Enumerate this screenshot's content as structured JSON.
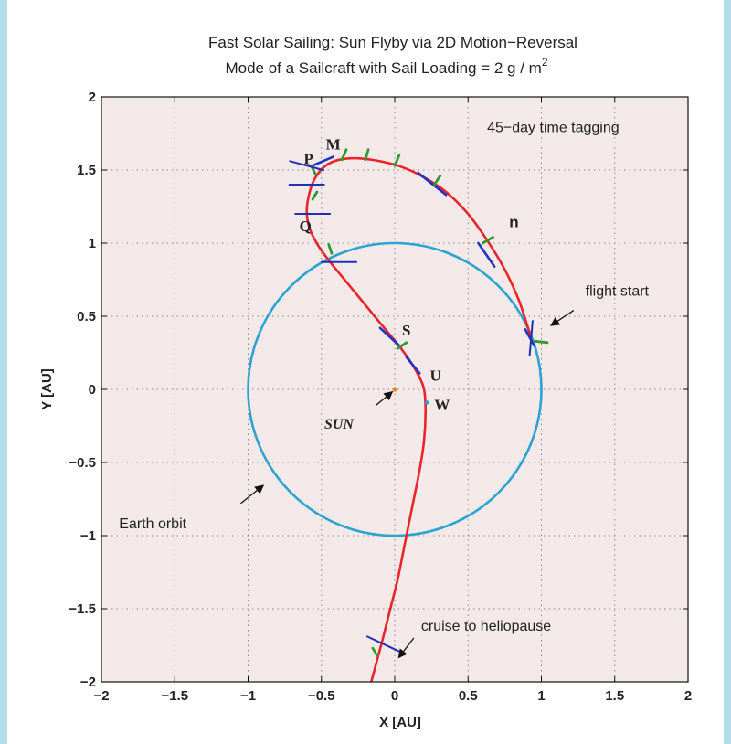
{
  "chart_data": {
    "type": "line",
    "title_line1": "Fast Solar Sailing: Sun Flyby via 2D Motion−Reversal",
    "title_line2": "Mode of a Sailcraft with Sail Loading = 2 g / m",
    "title_superscript": "2",
    "xlabel": "X  [AU]",
    "ylabel": "Y  [AU]",
    "xlim": [
      -2,
      2
    ],
    "ylim": [
      -2,
      2
    ],
    "grid": true,
    "xticks": [
      -2,
      -1.5,
      -1,
      -0.5,
      0,
      0.5,
      1,
      1.5,
      2
    ],
    "yticks": [
      -2,
      -1.5,
      -1,
      -0.5,
      0,
      0.5,
      1,
      1.5,
      2
    ],
    "xtick_labels": [
      "−2",
      "−1.5",
      "−1",
      "−0.5",
      "0",
      "0.5",
      "1",
      "1.5",
      "2"
    ],
    "ytick_labels": [
      "−2",
      "−1.5",
      "−1",
      "−0.5",
      "0",
      "0.5",
      "1",
      "1.5",
      "2"
    ],
    "colors": {
      "plot_background": "#f4e9e9",
      "grid": "#8a8a8a",
      "earth_orbit": "#2aa3cf",
      "trajectory": "#e8252b",
      "thrust_segment": "#2233c4",
      "sail_marker": "#1f2fb8",
      "tag_tick": "#2f9a2f",
      "sun": "#e08a1e",
      "point_w": "#2aa3cf"
    },
    "earth_orbit": {
      "center": [
        0,
        0
      ],
      "radius": 1.0
    },
    "sun": {
      "x": 0,
      "y": 0,
      "label": "SUN"
    },
    "trajectory": {
      "x": [
        0.93,
        0.85,
        0.75,
        0.63,
        0.5,
        0.35,
        0.2,
        0.05,
        -0.1,
        -0.25,
        -0.38,
        -0.47,
        -0.54,
        -0.58,
        -0.6,
        -0.58,
        -0.52,
        -0.44,
        -0.35,
        -0.26,
        -0.17,
        -0.08,
        0.02,
        0.1,
        0.16,
        0.2,
        0.21,
        0.2,
        0.17,
        0.12,
        0.07,
        0.02,
        -0.03,
        -0.08,
        -0.12,
        -0.16
      ],
      "y": [
        0.35,
        0.6,
        0.82,
        1.02,
        1.2,
        1.35,
        1.45,
        1.52,
        1.56,
        1.58,
        1.57,
        1.53,
        1.45,
        1.35,
        1.22,
        1.1,
        0.98,
        0.87,
        0.76,
        0.65,
        0.54,
        0.43,
        0.31,
        0.2,
        0.1,
        0.0,
        -0.15,
        -0.35,
        -0.55,
        -0.8,
        -1.05,
        -1.3,
        -1.5,
        -1.7,
        -1.85,
        -2.0
      ]
    },
    "thrust_segments": [
      {
        "x": [
          -0.56,
          -0.42
        ],
        "y": [
          1.53,
          1.59
        ]
      },
      {
        "x": [
          0.16,
          0.35
        ],
        "y": [
          1.48,
          1.33
        ]
      },
      {
        "x": [
          0.57,
          0.68
        ],
        "y": [
          1.0,
          0.84
        ]
      },
      {
        "x": [
          0.89,
          0.95
        ],
        "y": [
          0.41,
          0.3
        ]
      },
      {
        "x": [
          -0.1,
          0.03
        ],
        "y": [
          0.42,
          0.3
        ]
      },
      {
        "x": [
          0.08,
          0.17
        ],
        "y": [
          0.22,
          0.11
        ]
      }
    ],
    "sail_markers": [
      {
        "x": -0.6,
        "y": 1.53,
        "angle": -15
      },
      {
        "x": -0.6,
        "y": 1.4,
        "angle": 0
      },
      {
        "x": -0.56,
        "y": 1.2,
        "angle": 0
      },
      {
        "x": -0.38,
        "y": 0.87,
        "angle": 0
      },
      {
        "x": 0.93,
        "y": 0.35,
        "angle": 85
      },
      {
        "x": -0.08,
        "y": -1.74,
        "angle": -25
      }
    ],
    "time_tags": [
      {
        "x": -0.36,
        "y": 1.57,
        "dx": 0.03,
        "dy": 0.07
      },
      {
        "x": -0.2,
        "y": 1.57,
        "dx": 0.02,
        "dy": 0.07
      },
      {
        "x": 0.0,
        "y": 1.53,
        "dx": 0.03,
        "dy": 0.07
      },
      {
        "x": 0.27,
        "y": 1.4,
        "dx": 0.04,
        "dy": 0.06
      },
      {
        "x": 0.6,
        "y": 1.0,
        "dx": 0.07,
        "dy": 0.04
      },
      {
        "x": 0.95,
        "y": 0.33,
        "dx": 0.09,
        "dy": -0.01
      },
      {
        "x": -0.54,
        "y": 1.47,
        "dx": -0.03,
        "dy": 0.06
      },
      {
        "x": -0.56,
        "y": 1.3,
        "dx": 0.03,
        "dy": 0.05
      },
      {
        "x": -0.43,
        "y": 0.93,
        "dx": -0.02,
        "dy": 0.06
      },
      {
        "x": 0.02,
        "y": 0.28,
        "dx": 0.06,
        "dy": 0.04
      },
      {
        "x": -0.12,
        "y": -1.82,
        "dx": -0.03,
        "dy": 0.05
      }
    ],
    "points": [
      {
        "label": "M",
        "x": -0.47,
        "y": 1.64
      },
      {
        "label": "P",
        "x": -0.62,
        "y": 1.54
      },
      {
        "label": "Q",
        "x": -0.65,
        "y": 1.08
      },
      {
        "label": "S",
        "x": 0.05,
        "y": 0.37
      },
      {
        "label": "U",
        "x": 0.24,
        "y": 0.06
      },
      {
        "label": "W",
        "x": 0.27,
        "y": -0.14
      }
    ],
    "point_w_marker": {
      "x": 0.22,
      "y": -0.09
    },
    "label_n": {
      "text": "n",
      "x": 0.78,
      "y": 1.11
    },
    "annotations": [
      {
        "text": "45−day time tagging",
        "x": 0.63,
        "y": 1.76
      },
      {
        "text": "flight start",
        "x": 1.3,
        "y": 0.64,
        "arrow_from": [
          1.22,
          0.54
        ],
        "arrow_to": [
          1.07,
          0.44
        ]
      },
      {
        "text": "SUN",
        "x": -0.48,
        "y": -0.27,
        "arrow_from": [
          -0.13,
          -0.11
        ],
        "arrow_to": [
          -0.02,
          -0.02
        ]
      },
      {
        "text": "Earth orbit",
        "x": -1.88,
        "y": -0.95,
        "arrow_from": [
          -1.05,
          -0.78
        ],
        "arrow_to": [
          -0.9,
          -0.66
        ]
      },
      {
        "text": "cruise to heliopause",
        "x": 0.18,
        "y": -1.65,
        "arrow_from": [
          0.13,
          -1.7
        ],
        "arrow_to": [
          0.03,
          -1.83
        ]
      }
    ]
  }
}
